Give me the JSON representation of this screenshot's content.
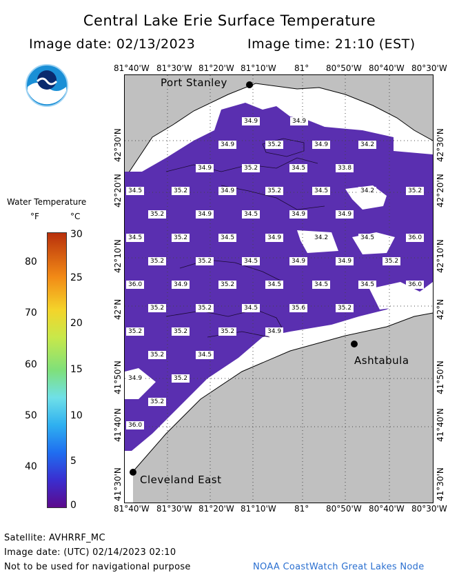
{
  "header": {
    "title": "Central Lake Erie Surface Temperature",
    "image_date": "Image date: 02/13/2023",
    "image_time": "Image time: 21:10 (EST)"
  },
  "legend": {
    "title": "Water Temperature",
    "f_unit": "°F",
    "c_unit": "°C",
    "f_ticks": [
      "80",
      "70",
      "60",
      "50",
      "40"
    ],
    "c_ticks": [
      "30",
      "25",
      "20",
      "15",
      "10",
      "5",
      "0"
    ]
  },
  "axes": {
    "lon_labels": [
      "81°40'W",
      "81°30'W",
      "81°20'W",
      "81°10'W",
      "81°",
      "80°50'W",
      "80°40'W",
      "80°30'W"
    ],
    "lat_labels": [
      "42°30'N",
      "42°20'N",
      "42°10'N",
      "42°N",
      "41°50'N",
      "41°40'N",
      "41°30'N"
    ]
  },
  "places": {
    "port_stanley": "Port Stanley",
    "ashtabula": "Ashtabula",
    "cleveland": "Cleveland East"
  },
  "temps": [
    "34.9",
    "34.9",
    "34.9",
    "35.2",
    "34.9",
    "34.2",
    "34.9",
    "35.2",
    "34.5",
    "33.8",
    "34.5",
    "35.2",
    "34.9",
    "35.2",
    "34.5",
    "34.2",
    "35.2",
    "35.2",
    "34.9",
    "34.5",
    "34.9",
    "34.9",
    "34.5",
    "35.2",
    "34.5",
    "34.9",
    "34.2",
    "34.5",
    "36.0",
    "35.2",
    "35.2",
    "34.5",
    "34.9",
    "34.9",
    "35.2",
    "36.0",
    "34.9",
    "35.2",
    "34.5",
    "34.5",
    "34.5",
    "36.0",
    "35.2",
    "35.2",
    "34.5",
    "35.6",
    "35.2",
    "35.2",
    "35.2",
    "35.2",
    "34.9",
    "35.2",
    "34.5",
    "34.9",
    "35.2",
    "35.2",
    "36.0"
  ],
  "footer": {
    "satellite": "Satellite: AVHRRF_MC",
    "utc_date": "Image date: (UTC) 02/14/2023  02:10",
    "disclaimer": "Not to be used for navigational purpose",
    "credit": "NOAA CoastWatch Great Lakes Node"
  },
  "colors": {
    "water": "#5a2fb0",
    "land": "#c0c0c0",
    "unsampled": "#ffffff"
  }
}
